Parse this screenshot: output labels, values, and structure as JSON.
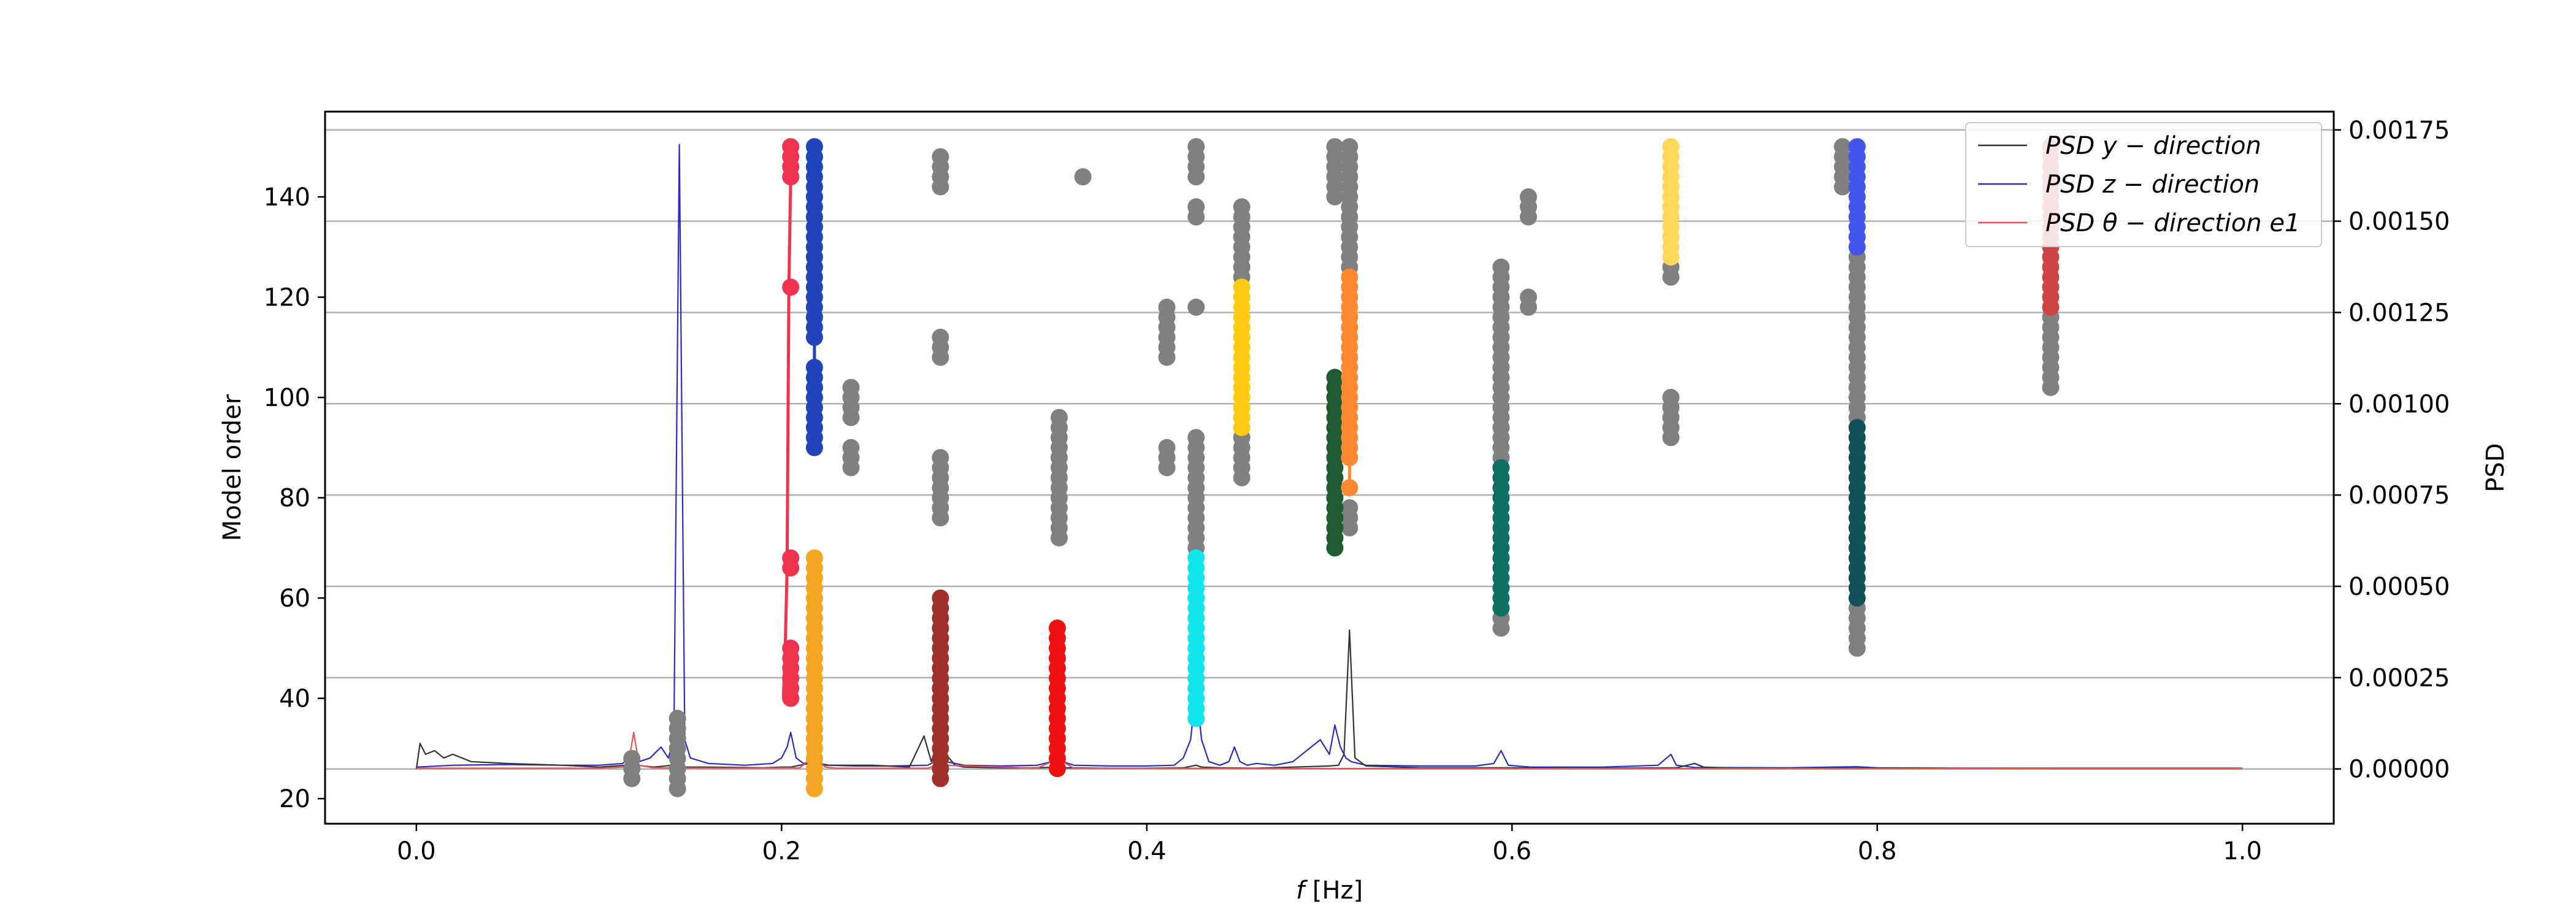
{
  "chart_data": {
    "type": "scatter",
    "title": "",
    "xlabel_prefix": "f",
    "xlabel_suffix": " [Hz]",
    "ylabel": "Model order",
    "y2label": "PSD",
    "xlim": [
      -0.05,
      1.05
    ],
    "ylim": [
      15,
      157
    ],
    "y2lim": [
      -0.00015,
      0.0018
    ],
    "x_ticks": [
      0.0,
      0.2,
      0.4,
      0.6,
      0.8,
      1.0
    ],
    "x_tick_labels": [
      "0.0",
      "0.2",
      "0.4",
      "0.6",
      "0.8",
      "1.0"
    ],
    "y_ticks": [
      20,
      40,
      60,
      80,
      100,
      120,
      140
    ],
    "y_tick_labels": [
      "20",
      "40",
      "60",
      "80",
      "100",
      "120",
      "140"
    ],
    "y2_ticks": [
      0.0,
      0.00025,
      0.0005,
      0.00075,
      0.001,
      0.00125,
      0.0015,
      0.00175
    ],
    "y2_tick_labels": [
      "0.00000",
      "0.00025",
      "0.00050",
      "0.00075",
      "0.00100",
      "0.00125",
      "0.00150",
      "0.00175"
    ],
    "grid": "horizontal lines at right-axis ticks",
    "legend": {
      "placement": "top-right",
      "entries": [
        {
          "label": "PSD y − direction",
          "color": "#333333"
        },
        {
          "label": "PSD z − direction",
          "color": "#2a2acc"
        },
        {
          "label": "PSD θ − direction e1",
          "color": "#e05555"
        }
      ]
    },
    "stabilization_columns": [
      {
        "f": 0.118,
        "color": "#808080",
        "ranges": [
          [
            24,
            28
          ]
        ]
      },
      {
        "f": 0.143,
        "color": "#808080",
        "ranges": [
          [
            22,
            36
          ]
        ]
      },
      {
        "f": 0.205,
        "color": "#f0344f",
        "ranges": [
          [
            40,
            50
          ],
          [
            66,
            68
          ],
          [
            122,
            122
          ],
          [
            144,
            150
          ]
        ]
      },
      {
        "f": 0.218,
        "color": "#2244bb",
        "ranges": [
          [
            90,
            106
          ],
          [
            112,
            150
          ]
        ]
      },
      {
        "f": 0.218,
        "color": "#f5a623",
        "ranges": [
          [
            22,
            68
          ]
        ]
      },
      {
        "f": 0.238,
        "color": "#808080",
        "ranges": [
          [
            86,
            90
          ],
          [
            96,
            102
          ]
        ]
      },
      {
        "f": 0.287,
        "color": "#a0302a",
        "ranges": [
          [
            24,
            60
          ]
        ]
      },
      {
        "f": 0.287,
        "color": "#808080",
        "ranges": [
          [
            76,
            88
          ],
          [
            108,
            112
          ],
          [
            142,
            148
          ]
        ]
      },
      {
        "f": 0.351,
        "color": "#ee1111",
        "ranges": [
          [
            26,
            54
          ]
        ]
      },
      {
        "f": 0.352,
        "color": "#808080",
        "ranges": [
          [
            72,
            96
          ]
        ]
      },
      {
        "f": 0.365,
        "color": "#808080",
        "ranges": [
          [
            144,
            144
          ]
        ]
      },
      {
        "f": 0.411,
        "color": "#808080",
        "ranges": [
          [
            86,
            90
          ],
          [
            108,
            118
          ]
        ]
      },
      {
        "f": 0.427,
        "color": "#10e6ec",
        "ranges": [
          [
            36,
            68
          ]
        ]
      },
      {
        "f": 0.427,
        "color": "#808080",
        "ranges": [
          [
            70,
            92
          ],
          [
            118,
            118
          ],
          [
            136,
            138
          ],
          [
            144,
            150
          ]
        ]
      },
      {
        "f": 0.452,
        "color": "#ffcc11",
        "ranges": [
          [
            94,
            122
          ]
        ]
      },
      {
        "f": 0.452,
        "color": "#808080",
        "ranges": [
          [
            84,
            92
          ],
          [
            124,
            138
          ]
        ]
      },
      {
        "f": 0.503,
        "color": "#1f5a32",
        "ranges": [
          [
            70,
            104
          ]
        ]
      },
      {
        "f": 0.503,
        "color": "#808080",
        "ranges": [
          [
            140,
            150
          ]
        ]
      },
      {
        "f": 0.511,
        "color": "#ff8833",
        "ranges": [
          [
            82,
            82
          ],
          [
            88,
            124
          ]
        ]
      },
      {
        "f": 0.511,
        "color": "#808080",
        "ranges": [
          [
            74,
            78
          ],
          [
            126,
            150
          ]
        ]
      },
      {
        "f": 0.594,
        "color": "#0e7060",
        "ranges": [
          [
            58,
            86
          ]
        ]
      },
      {
        "f": 0.594,
        "color": "#808080",
        "ranges": [
          [
            54,
            56
          ],
          [
            88,
            126
          ]
        ]
      },
      {
        "f": 0.609,
        "color": "#808080",
        "ranges": [
          [
            118,
            120
          ],
          [
            136,
            140
          ]
        ]
      },
      {
        "f": 0.687,
        "color": "#ffd85a",
        "ranges": [
          [
            128,
            150
          ]
        ]
      },
      {
        "f": 0.687,
        "color": "#808080",
        "ranges": [
          [
            92,
            100
          ],
          [
            124,
            126
          ]
        ]
      },
      {
        "f": 0.781,
        "color": "#808080",
        "ranges": [
          [
            142,
            150
          ]
        ]
      },
      {
        "f": 0.789,
        "color": "#145058",
        "ranges": [
          [
            60,
            94
          ]
        ]
      },
      {
        "f": 0.789,
        "color": "#4455ee",
        "ranges": [
          [
            130,
            150
          ]
        ]
      },
      {
        "f": 0.789,
        "color": "#808080",
        "ranges": [
          [
            50,
            58
          ],
          [
            96,
            128
          ]
        ]
      },
      {
        "f": 0.895,
        "color": "#cc4444",
        "ranges": [
          [
            118,
            150
          ]
        ]
      },
      {
        "f": 0.895,
        "color": "#808080",
        "ranges": [
          [
            102,
            116
          ]
        ]
      }
    ],
    "connector_lines": [
      {
        "color": "#f0344f",
        "points": [
          [
            0.201,
            40
          ],
          [
            0.202,
            50
          ],
          [
            0.203,
            66
          ],
          [
            0.204,
            122
          ],
          [
            0.205,
            144
          ],
          [
            0.206,
            150
          ]
        ]
      },
      {
        "color": "#2244bb",
        "points": [
          [
            0.218,
            90
          ],
          [
            0.218,
            150
          ]
        ]
      },
      {
        "color": "#ff8833",
        "points": [
          [
            0.511,
            82
          ],
          [
            0.511,
            124
          ]
        ]
      }
    ],
    "series": [
      {
        "name": "PSD y − direction",
        "color": "#333333",
        "x": [
          0.0,
          0.002,
          0.005,
          0.01,
          0.015,
          0.02,
          0.03,
          0.05,
          0.08,
          0.1,
          0.115,
          0.118,
          0.121,
          0.13,
          0.14,
          0.143,
          0.146,
          0.16,
          0.19,
          0.2,
          0.205,
          0.21,
          0.215,
          0.218,
          0.221,
          0.23,
          0.25,
          0.27,
          0.278,
          0.282,
          0.287,
          0.29,
          0.295,
          0.3,
          0.32,
          0.34,
          0.35,
          0.352,
          0.355,
          0.36,
          0.38,
          0.4,
          0.42,
          0.427,
          0.43,
          0.44,
          0.46,
          0.48,
          0.5,
          0.505,
          0.508,
          0.511,
          0.514,
          0.52,
          0.55,
          0.6,
          0.65,
          0.69,
          0.7,
          0.705,
          0.72,
          0.8,
          0.9,
          1.0
        ],
        "y": [
          0.0,
          7e-05,
          4e-05,
          5e-05,
          3e-05,
          4e-05,
          2e-05,
          1.5e-05,
          1e-05,
          5e-06,
          1e-05,
          2e-05,
          1e-05,
          5e-06,
          1e-05,
          2e-05,
          5e-06,
          5e-06,
          3e-06,
          5e-06,
          5e-06,
          1e-05,
          1.5e-05,
          2e-05,
          1e-05,
          1e-05,
          1e-05,
          5e-06,
          9e-05,
          2e-05,
          0.0001,
          4e-05,
          1e-05,
          5e-06,
          3e-06,
          3e-06,
          5e-06,
          1e-05,
          3e-06,
          3e-06,
          2e-06,
          2e-06,
          3e-06,
          1e-05,
          5e-06,
          3e-06,
          2e-06,
          5e-06,
          8e-06,
          1e-05,
          4e-05,
          0.00038,
          3e-05,
          8e-06,
          3e-06,
          3e-06,
          2e-06,
          3e-06,
          1.5e-05,
          5e-06,
          2e-06,
          2e-06,
          1e-06,
          1e-06
        ]
      },
      {
        "name": "PSD z − direction",
        "color": "#2a2acc",
        "x": [
          0.0,
          0.02,
          0.05,
          0.08,
          0.1,
          0.113,
          0.118,
          0.122,
          0.128,
          0.134,
          0.138,
          0.141,
          0.144,
          0.147,
          0.15,
          0.16,
          0.18,
          0.195,
          0.2,
          0.203,
          0.205,
          0.208,
          0.212,
          0.216,
          0.218,
          0.221,
          0.226,
          0.24,
          0.26,
          0.28,
          0.284,
          0.287,
          0.29,
          0.3,
          0.32,
          0.34,
          0.348,
          0.351,
          0.354,
          0.36,
          0.38,
          0.4,
          0.415,
          0.42,
          0.424,
          0.427,
          0.43,
          0.434,
          0.44,
          0.445,
          0.448,
          0.451,
          0.455,
          0.46,
          0.47,
          0.48,
          0.49,
          0.495,
          0.5,
          0.503,
          0.506,
          0.509,
          0.512,
          0.52,
          0.55,
          0.58,
          0.59,
          0.594,
          0.598,
          0.61,
          0.65,
          0.68,
          0.687,
          0.69,
          0.7,
          0.75,
          0.789,
          0.8,
          0.85,
          0.9,
          0.95,
          1.0
        ],
        "y": [
          5e-06,
          1e-05,
          1.2e-05,
          1e-05,
          1e-05,
          1.5e-05,
          4e-05,
          2e-05,
          3e-05,
          6e-05,
          3e-05,
          8e-05,
          0.00171,
          8e-05,
          3e-05,
          1.5e-05,
          1e-05,
          1.5e-05,
          3e-05,
          6e-05,
          0.0001,
          3e-05,
          1.5e-05,
          2e-05,
          2e-05,
          1.5e-05,
          1e-05,
          8e-06,
          8e-06,
          1e-05,
          2e-05,
          0.00012,
          2e-05,
          1e-05,
          8e-06,
          1e-05,
          2e-05,
          5e-05,
          2e-05,
          1e-05,
          8e-06,
          8e-06,
          1e-05,
          3e-05,
          8e-05,
          0.00022,
          8e-05,
          2e-05,
          1e-05,
          2e-05,
          6e-05,
          2e-05,
          1e-05,
          1.5e-05,
          1e-05,
          2e-05,
          6e-05,
          8e-05,
          4e-05,
          0.00012,
          6e-05,
          3e-05,
          2e-05,
          1e-05,
          8e-06,
          8e-06,
          1.5e-05,
          5e-05,
          1e-05,
          5e-06,
          5e-06,
          1e-05,
          4e-05,
          1e-05,
          4e-06,
          3e-06,
          6e-06,
          3e-06,
          2e-06,
          2e-06,
          2e-06,
          2e-06
        ]
      },
      {
        "name": "PSD θ − direction e1",
        "color": "#e05555",
        "x": [
          0.0,
          0.05,
          0.1,
          0.113,
          0.116,
          0.119,
          0.122,
          0.13,
          0.18,
          0.21,
          0.214,
          0.217,
          0.219,
          0.221,
          0.224,
          0.23,
          0.28,
          0.285,
          0.287,
          0.29,
          0.34,
          0.348,
          0.351,
          0.354,
          0.36,
          0.5,
          0.6,
          0.8,
          1.0
        ],
        "y": [
          2e-06,
          2e-06,
          2e-06,
          5e-06,
          1e-05,
          0.0001,
          1e-05,
          3e-06,
          2e-06,
          3e-06,
          2e-05,
          0.00036,
          0.0001,
          2e-05,
          5e-06,
          2e-06,
          2e-06,
          1e-05,
          7e-05,
          1e-05,
          2e-06,
          2e-05,
          0.00028,
          2e-05,
          2e-06,
          1e-06,
          1e-06,
          1e-06,
          1e-06
        ]
      }
    ]
  }
}
